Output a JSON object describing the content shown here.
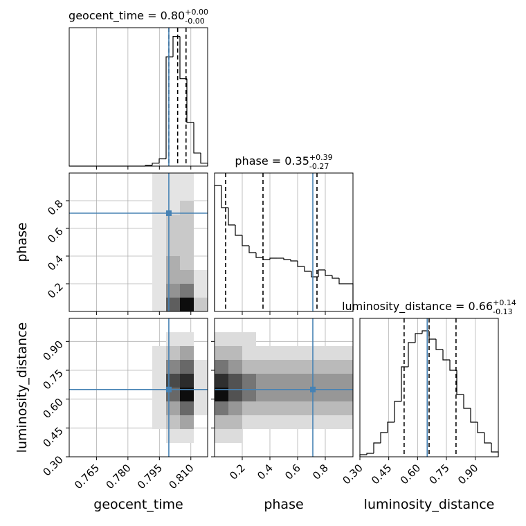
{
  "chart_data": [
    {
      "type": "histogram",
      "title": "geocent_time = 0.80",
      "title_sup": "+0.00",
      "title_sub": "-0.00",
      "bins": [
        0.752,
        0.7553,
        0.7586,
        0.7619,
        0.7652,
        0.7685,
        0.7718,
        0.7751,
        0.7784,
        0.7817,
        0.785,
        0.7883,
        0.7916,
        0.7949,
        0.7982,
        0.8015,
        0.8048,
        0.8081,
        0.8114,
        0.8147,
        0.818
      ],
      "counts": [
        0,
        0,
        0,
        0,
        0,
        0,
        0,
        0,
        0,
        0,
        0,
        1,
        4,
        10,
        150,
        178,
        120,
        60,
        18,
        4
      ],
      "xlim": [
        0.752,
        0.818
      ],
      "ylim": [
        0,
        190
      ],
      "quantiles": [
        0.7995,
        0.8037,
        0.8077
      ],
      "truth": 0.7995,
      "color": "#000000",
      "truth_color": "#4682b4",
      "grid": true
    },
    {
      "type": "density",
      "xlim": [
        0.752,
        0.818
      ],
      "ylim": [
        0.0,
        1.0
      ],
      "x_edges": [
        0.752,
        0.7586,
        0.7652,
        0.7718,
        0.7784,
        0.785,
        0.7916,
        0.7982,
        0.8048,
        0.8114,
        0.818
      ],
      "y_edges": [
        0.0,
        0.1,
        0.2,
        0.3,
        0.4,
        0.5,
        0.6,
        0.7,
        0.8,
        0.9,
        1.0
      ],
      "counts": [
        [
          0,
          0,
          0,
          0,
          0,
          0,
          1,
          6,
          9,
          2
        ],
        [
          0,
          0,
          0,
          0,
          0,
          0,
          1,
          4,
          5,
          1
        ],
        [
          0,
          0,
          0,
          0,
          0,
          0,
          1,
          3,
          3,
          1
        ],
        [
          0,
          0,
          0,
          0,
          0,
          0,
          1,
          3,
          2,
          0
        ],
        [
          0,
          0,
          0,
          0,
          0,
          0,
          1,
          2,
          2,
          0
        ],
        [
          0,
          0,
          0,
          0,
          0,
          0,
          1,
          2,
          2,
          0
        ],
        [
          0,
          0,
          0,
          0,
          0,
          0,
          1,
          2,
          2,
          0
        ],
        [
          0,
          0,
          0,
          0,
          0,
          0,
          1,
          1,
          2,
          0
        ],
        [
          0,
          0,
          0,
          0,
          0,
          0,
          1,
          1,
          1,
          0
        ],
        [
          0,
          0,
          0,
          0,
          0,
          0,
          1,
          1,
          1,
          0
        ]
      ],
      "truth": [
        0.7995,
        0.71
      ],
      "ylabel": "phase",
      "yticks": [
        0.2,
        0.4,
        0.6,
        0.8
      ],
      "truth_color": "#4682b4",
      "grid": true
    },
    {
      "type": "histogram",
      "title": "phase = 0.35",
      "title_sup": "+0.39",
      "title_sub": "-0.27",
      "bins": [
        0.0,
        0.05,
        0.1,
        0.15,
        0.2,
        0.25,
        0.3,
        0.35,
        0.4,
        0.45,
        0.5,
        0.55,
        0.6,
        0.65,
        0.7,
        0.75,
        0.8,
        0.85,
        0.9,
        0.95,
        1.0
      ],
      "counts": [
        182,
        150,
        125,
        110,
        95,
        85,
        78,
        75,
        77,
        77,
        75,
        73,
        65,
        58,
        50,
        60,
        52,
        48,
        40,
        40
      ],
      "xlim": [
        0.0,
        1.0
      ],
      "ylim": [
        0,
        200
      ],
      "quantiles": [
        0.08,
        0.35,
        0.74
      ],
      "truth": 0.71,
      "color": "#000000",
      "truth_color": "#4682b4",
      "grid": true
    },
    {
      "type": "density",
      "xlim": [
        0.752,
        0.818
      ],
      "ylim": [
        0.3,
        1.02
      ],
      "x_edges": [
        0.752,
        0.7586,
        0.7652,
        0.7718,
        0.7784,
        0.785,
        0.7916,
        0.7982,
        0.8048,
        0.8114,
        0.818
      ],
      "y_edges": [
        0.3,
        0.372,
        0.444,
        0.516,
        0.588,
        0.66,
        0.732,
        0.804,
        0.876,
        0.948,
        1.02
      ],
      "counts": [
        [
          0,
          0,
          0,
          0,
          0,
          0,
          0,
          0,
          0,
          0
        ],
        [
          0,
          0,
          0,
          0,
          0,
          0,
          0,
          1,
          1,
          0
        ],
        [
          0,
          0,
          0,
          0,
          0,
          0,
          1,
          2,
          3,
          0
        ],
        [
          0,
          0,
          0,
          0,
          0,
          0,
          1,
          3,
          5,
          1
        ],
        [
          0,
          0,
          0,
          0,
          0,
          0,
          1,
          5,
          8,
          1
        ],
        [
          0,
          0,
          0,
          0,
          0,
          0,
          1,
          6,
          7,
          1
        ],
        [
          0,
          0,
          0,
          0,
          0,
          0,
          1,
          4,
          5,
          1
        ],
        [
          0,
          0,
          0,
          0,
          0,
          0,
          1,
          2,
          3,
          0
        ],
        [
          0,
          0,
          0,
          0,
          0,
          0,
          0,
          1,
          1,
          0
        ],
        [
          0,
          0,
          0,
          0,
          0,
          0,
          0,
          0,
          0,
          0
        ]
      ],
      "truth": [
        0.7995,
        0.65
      ],
      "xlabel": "geocent_time",
      "ylabel": "luminosity_distance",
      "xticks": [
        0.765,
        {
          "value": 0.78,
          "label": "0.780"
        },
        0.795,
        {
          "value": 0.81,
          "label": "0.810"
        }
      ],
      "yticks": [
        {
          "value": 0.3,
          "label": "0.30"
        },
        0.45,
        {
          "value": 0.6,
          "label": "0.60"
        },
        0.75,
        {
          "value": 0.9,
          "label": "0.90"
        }
      ],
      "truth_color": "#4682b4",
      "grid": true
    },
    {
      "type": "density",
      "xlim": [
        0.0,
        1.0
      ],
      "ylim": [
        0.3,
        1.02
      ],
      "x_edges": [
        0.0,
        0.1,
        0.2,
        0.3,
        0.4,
        0.5,
        0.6,
        0.7,
        0.8,
        0.9,
        1.0
      ],
      "y_edges": [
        0.3,
        0.372,
        0.444,
        0.516,
        0.588,
        0.66,
        0.732,
        0.804,
        0.876,
        0.948,
        1.02
      ],
      "counts": [
        [
          0,
          0,
          0,
          0,
          0,
          0,
          0,
          0,
          0,
          0
        ],
        [
          1,
          1,
          0,
          0,
          0,
          0,
          0,
          0,
          0,
          0
        ],
        [
          2,
          2,
          1,
          1,
          1,
          1,
          1,
          1,
          1,
          1
        ],
        [
          4,
          3,
          2,
          2,
          2,
          2,
          2,
          2,
          2,
          2
        ],
        [
          7,
          5,
          4,
          3,
          3,
          3,
          3,
          3,
          3,
          3
        ],
        [
          6,
          5,
          4,
          3,
          3,
          3,
          3,
          3,
          3,
          3
        ],
        [
          4,
          3,
          2,
          2,
          2,
          2,
          2,
          2,
          2,
          2
        ],
        [
          2,
          2,
          1,
          1,
          1,
          1,
          1,
          1,
          1,
          1
        ],
        [
          1,
          1,
          1,
          0,
          0,
          0,
          0,
          0,
          0,
          0
        ],
        [
          0,
          0,
          0,
          0,
          0,
          0,
          0,
          0,
          0,
          0
        ]
      ],
      "truth": [
        0.71,
        0.65
      ],
      "xlabel": "phase",
      "xticks": [
        0.2,
        0.4,
        0.6,
        0.8
      ],
      "truth_color": "#4682b4",
      "grid": true
    },
    {
      "type": "histogram",
      "title": "luminosity_distance = 0.66",
      "title_sup": "+0.14",
      "title_sub": "-0.13",
      "bins": [
        0.3,
        0.336,
        0.372,
        0.408,
        0.444,
        0.48,
        0.516,
        0.552,
        0.588,
        0.624,
        0.66,
        0.696,
        0.732,
        0.768,
        0.804,
        0.84,
        0.876,
        0.912,
        0.948,
        0.984,
        1.02
      ],
      "counts": [
        3,
        5,
        20,
        35,
        50,
        80,
        130,
        165,
        178,
        182,
        170,
        155,
        140,
        125,
        90,
        70,
        50,
        35,
        20,
        7
      ],
      "xlim": [
        0.3,
        1.02
      ],
      "ylim": [
        0,
        200
      ],
      "quantiles": [
        0.53,
        0.66,
        0.8
      ],
      "truth": 0.65,
      "xlabel": "luminosity_distance",
      "xticks": [
        {
          "value": 0.3,
          "label": "0.30"
        },
        0.45,
        {
          "value": 0.6,
          "label": "0.60"
        },
        0.75,
        {
          "value": 0.9,
          "label": "0.90"
        }
      ],
      "color": "#000000",
      "truth_color": "#4682b4",
      "grid": true
    }
  ]
}
